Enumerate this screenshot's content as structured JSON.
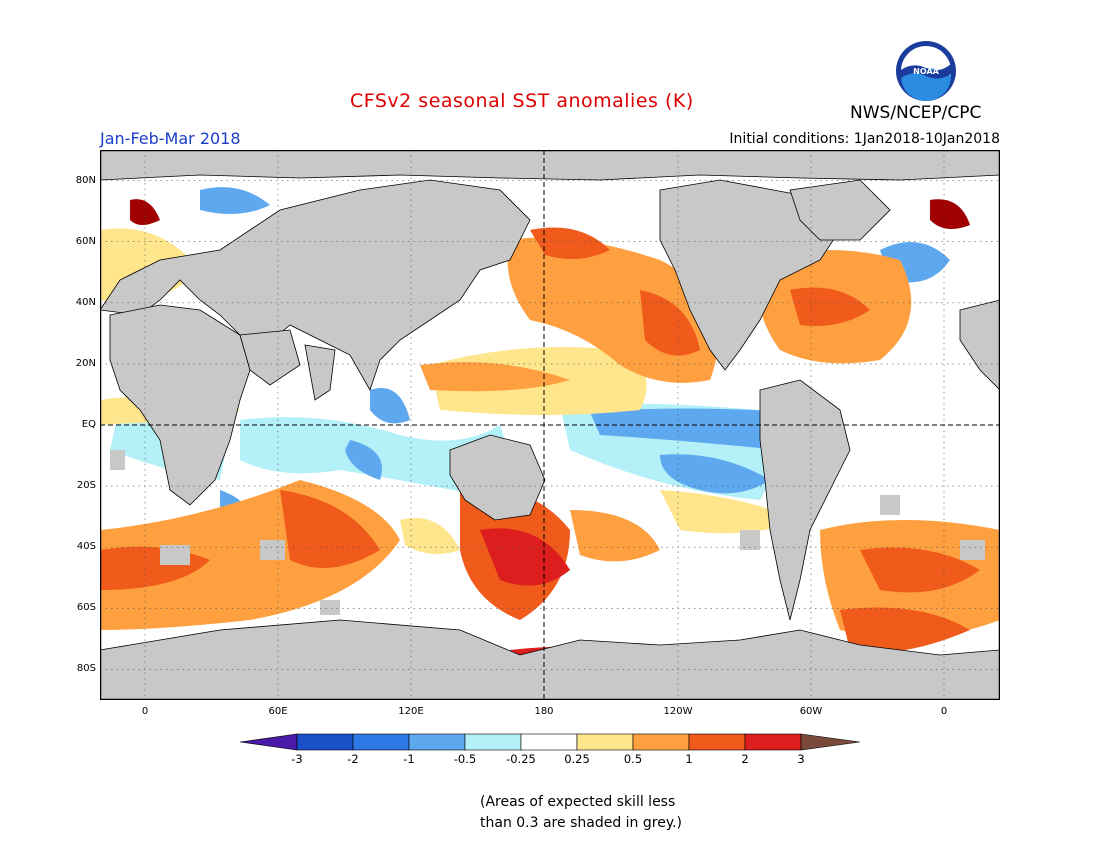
{
  "header": {
    "title": "CFSv2 seasonal SST anomalies (K)",
    "period": "Jan-Feb-Mar 2018",
    "initial_conditions": "Initial conditions: 1Jan2018-10Jan2018",
    "agency": "NWS/NCEP/CPC",
    "logo_text": "NOAA"
  },
  "colors": {
    "title": "#e00000",
    "period": "#1a3cc8",
    "land": "#c8c8c8",
    "grey_skill": "#c8c8c8",
    "ocean_neutral": "#ffffff"
  },
  "map": {
    "lat_labels": [
      "80N",
      "60N",
      "40N",
      "20N",
      "EQ",
      "20S",
      "40S",
      "60S",
      "80S"
    ],
    "lon_labels": [
      "0",
      "60E",
      "120E",
      "180",
      "120W",
      "60W",
      "0"
    ]
  },
  "colorbar": {
    "labels": [
      "-3",
      "-2",
      "-1",
      "-0.5",
      "-0.25",
      "0.25",
      "0.5",
      "1",
      "2",
      "3"
    ],
    "low_color": "#4a1aa8",
    "high_color": "#7a4a3a",
    "colors": [
      "#1a50c8",
      "#2e78e6",
      "#5ea8f0",
      "#b4f0f8",
      "#ffffff",
      "#ffe68c",
      "#ffa040",
      "#f05a1a",
      "#dc1e1e",
      "#a00000"
    ]
  },
  "note": {
    "line1": "(Areas of expected skill less",
    "line2": "than 0.3 are shaded in grey.)"
  }
}
